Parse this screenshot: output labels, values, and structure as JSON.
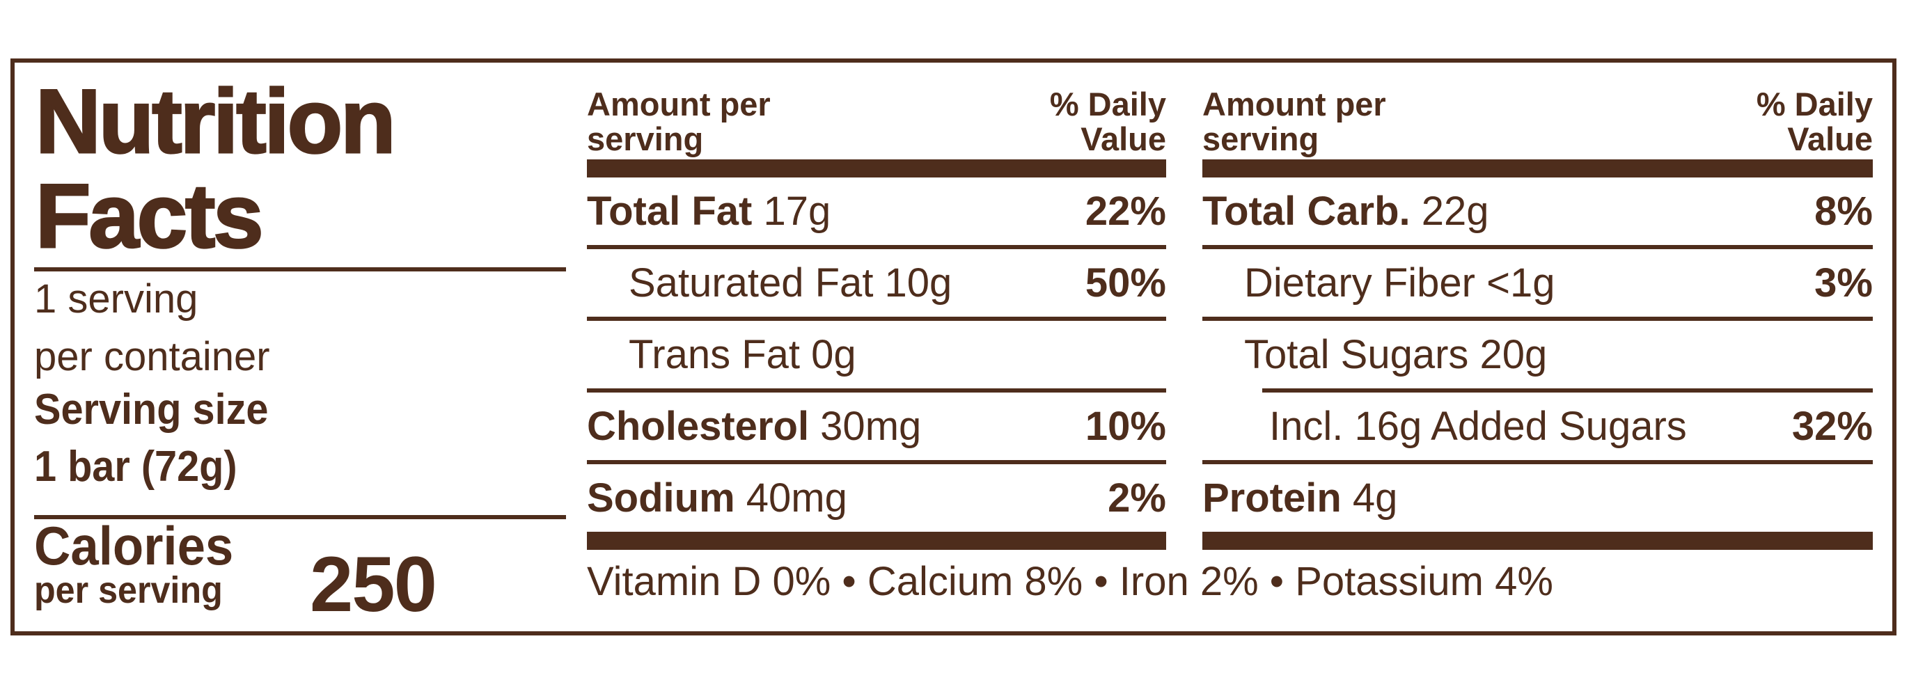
{
  "colors": {
    "ink": "#4E2D1C",
    "background": "#FFFFFF"
  },
  "title": {
    "line1": "Nutrition",
    "line2": "Facts"
  },
  "serving_info": {
    "servings_line1": "1 serving",
    "servings_line2": "per container",
    "size_label": "Serving size",
    "size_value": "1 bar (72g)"
  },
  "calories": {
    "label": "Calories",
    "sublabel": "per serving",
    "value": "250"
  },
  "column_header": {
    "left_line1": "Amount per",
    "left_line2": "serving",
    "right_line1": "% Daily",
    "right_line2": "Value"
  },
  "fat_column": {
    "rows": [
      {
        "bold": "Total Fat",
        "rest": " 17g",
        "dv": "22%"
      },
      {
        "bold": "",
        "rest": "Saturated Fat 10g",
        "dv": "50%"
      },
      {
        "bold": "",
        "rest": "Trans Fat 0g",
        "dv": ""
      },
      {
        "bold": "Cholesterol",
        "rest": " 30mg",
        "dv": "10%"
      },
      {
        "bold": "Sodium",
        "rest": " 40mg",
        "dv": "2%"
      }
    ]
  },
  "carb_column": {
    "rows": [
      {
        "bold": "Total Carb.",
        "rest": " 22g",
        "dv": "8%"
      },
      {
        "bold": "",
        "rest": "Dietary Fiber <1g",
        "dv": "3%"
      },
      {
        "bold": "",
        "rest": "Total Sugars 20g",
        "dv": ""
      },
      {
        "bold": "",
        "rest": "Incl. 16g Added Sugars",
        "dv": "32%"
      },
      {
        "bold": "Protein",
        "rest": " 4g",
        "dv": ""
      }
    ]
  },
  "micronutrients": {
    "text": "Vitamin D 0% • Calcium 8% • Iron 2% • Potassium 4%"
  }
}
